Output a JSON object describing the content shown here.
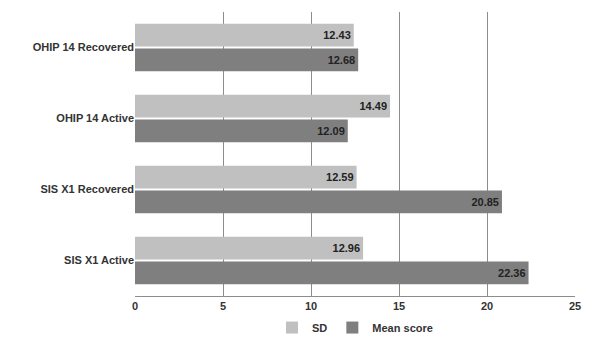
{
  "chart_data": {
    "type": "bar",
    "orientation": "horizontal",
    "categories": [
      "SIS X1 Active",
      "SIS X1 Recovered",
      "OHIP 14 Active",
      "OHIP 14 Recovered"
    ],
    "series": [
      {
        "name": "SD",
        "color": "#c0c0c0",
        "values": [
          12.96,
          12.59,
          14.49,
          12.43
        ]
      },
      {
        "name": "Mean score",
        "color": "#7f7f7f",
        "values": [
          22.36,
          20.85,
          12.09,
          12.68
        ]
      }
    ],
    "xlim": [
      0,
      25
    ],
    "xticks": [
      0,
      5,
      10,
      15,
      20,
      25
    ],
    "grid": true,
    "legend": "bottom",
    "data_labels": true
  }
}
